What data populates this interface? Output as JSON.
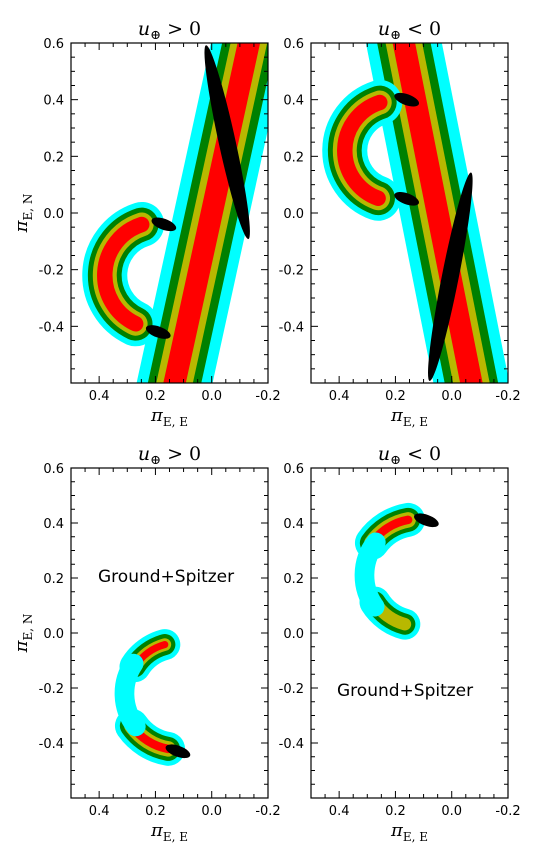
{
  "colors": {
    "c4": "#00ffff",
    "c3": "#008000",
    "c2": "#b8b800",
    "c1": "#ff0000",
    "c0": "#000000"
  },
  "chart_data": [
    {
      "type": "heatmap",
      "title": "u⊕ > 0",
      "xlabel": "πE, E",
      "ylabel": "πE, N",
      "xlim": [
        0.5,
        -0.2
      ],
      "ylim": [
        -0.6,
        0.6
      ],
      "xticks": [
        "0.4",
        "0.2",
        "0.0",
        "-0.2"
      ],
      "yticks": [
        "0.6",
        "0.4",
        "0.2",
        "0.0",
        "-0.2",
        "-0.4"
      ],
      "annotation": "",
      "ground_band": {
        "x0": 0.0,
        "y0": 0.0,
        "slope": -0.22,
        "widths": [
          0.27,
          0.19,
          0.13,
          0.08,
          0.035
        ],
        "black_y": [
          -0.1,
          0.6
        ]
      },
      "crescents": [
        {
          "center": [
            0.19,
            -0.22
          ],
          "radius": 0.19,
          "start_deg": -65,
          "end_deg": 72,
          "thickness": [
            0.16,
            0.12,
            0.085,
            0.055
          ],
          "cores": [
            [
              0.17,
              -0.04
            ],
            [
              0.19,
              -0.42
            ]
          ]
        }
      ]
    },
    {
      "type": "heatmap",
      "title": "u⊕ < 0",
      "xlabel": "πE, E",
      "ylabel": "",
      "xlim": [
        0.5,
        -0.2
      ],
      "ylim": [
        -0.6,
        0.6
      ],
      "xticks": [
        "0.4",
        "0.2",
        "0.0",
        "-0.2"
      ],
      "yticks": [
        "0.6",
        "0.4",
        "0.2",
        "0.0",
        "-0.2",
        "-0.4"
      ],
      "annotation": "",
      "ground_band": {
        "x0": 0.05,
        "y0": 0.0,
        "slope": 0.2,
        "widths": [
          0.27,
          0.19,
          0.13,
          0.08,
          0.035
        ],
        "black_y": [
          -0.6,
          0.15
        ]
      },
      "crescents": [
        {
          "center": [
            0.2,
            0.22
          ],
          "radius": 0.18,
          "start_deg": -70,
          "end_deg": 72,
          "thickness": [
            0.16,
            0.12,
            0.085,
            0.055
          ],
          "cores": [
            [
              0.16,
              0.4
            ],
            [
              0.16,
              0.05
            ]
          ]
        }
      ]
    },
    {
      "type": "heatmap",
      "title": "u⊕ > 0",
      "xlabel": "πE, E",
      "ylabel": "πE, N",
      "xlim": [
        0.5,
        -0.2
      ],
      "ylim": [
        -0.6,
        0.6
      ],
      "xticks": [
        "0.4",
        "0.2",
        "0.0",
        "-0.2"
      ],
      "yticks": [
        "0.6",
        "0.4",
        "0.2",
        "0.0",
        "-0.2",
        "-0.4"
      ],
      "annotation": "Ground+Spitzer",
      "ground_band": null,
      "crescents": [
        {
          "center": [
            0.12,
            -0.22
          ],
          "radius": 0.2,
          "start_deg": -80,
          "end_deg": -35,
          "thickness": [
            0.12,
            0.085,
            0.055,
            0.03
          ],
          "cores": [
            [
              0.12,
              -0.43
            ]
          ]
        },
        {
          "center": [
            0.12,
            -0.22
          ],
          "radius": 0.18,
          "start_deg": 32,
          "end_deg": 75,
          "thickness": [
            0.11,
            0.075,
            0.045,
            0.025
          ],
          "cores": []
        },
        {
          "center": [
            0.12,
            -0.22
          ],
          "radius": 0.19,
          "start_deg": -38,
          "end_deg": 34,
          "thickness": [
            0.07,
            0.0,
            0.0,
            0.0
          ],
          "cores": []
        }
      ]
    },
    {
      "type": "heatmap",
      "title": "u⊕ < 0",
      "xlabel": "πE, E",
      "ylabel": "",
      "xlim": [
        0.5,
        -0.2
      ],
      "ylim": [
        -0.6,
        0.6
      ],
      "xticks": [
        "0.4",
        "0.2",
        "0.0",
        "-0.2"
      ],
      "yticks": [
        "0.6",
        "0.4",
        "0.2",
        "0.0",
        "-0.2",
        "-0.4"
      ],
      "annotation": "Ground+Spitzer",
      "ground_band": null,
      "crescents": [
        {
          "center": [
            0.12,
            0.21
          ],
          "radius": 0.2,
          "start_deg": 35,
          "end_deg": 80,
          "thickness": [
            0.12,
            0.085,
            0.055,
            0.03
          ],
          "cores": [
            [
              0.09,
              0.41
            ]
          ]
        },
        {
          "center": [
            0.12,
            0.21
          ],
          "radius": 0.18,
          "start_deg": -75,
          "end_deg": -32,
          "thickness": [
            0.11,
            0.075,
            0.045,
            0.0
          ],
          "cores": []
        },
        {
          "center": [
            0.12,
            0.21
          ],
          "radius": 0.19,
          "start_deg": -36,
          "end_deg": 38,
          "thickness": [
            0.07,
            0.0,
            0.0,
            0.0
          ],
          "cores": []
        }
      ]
    }
  ]
}
